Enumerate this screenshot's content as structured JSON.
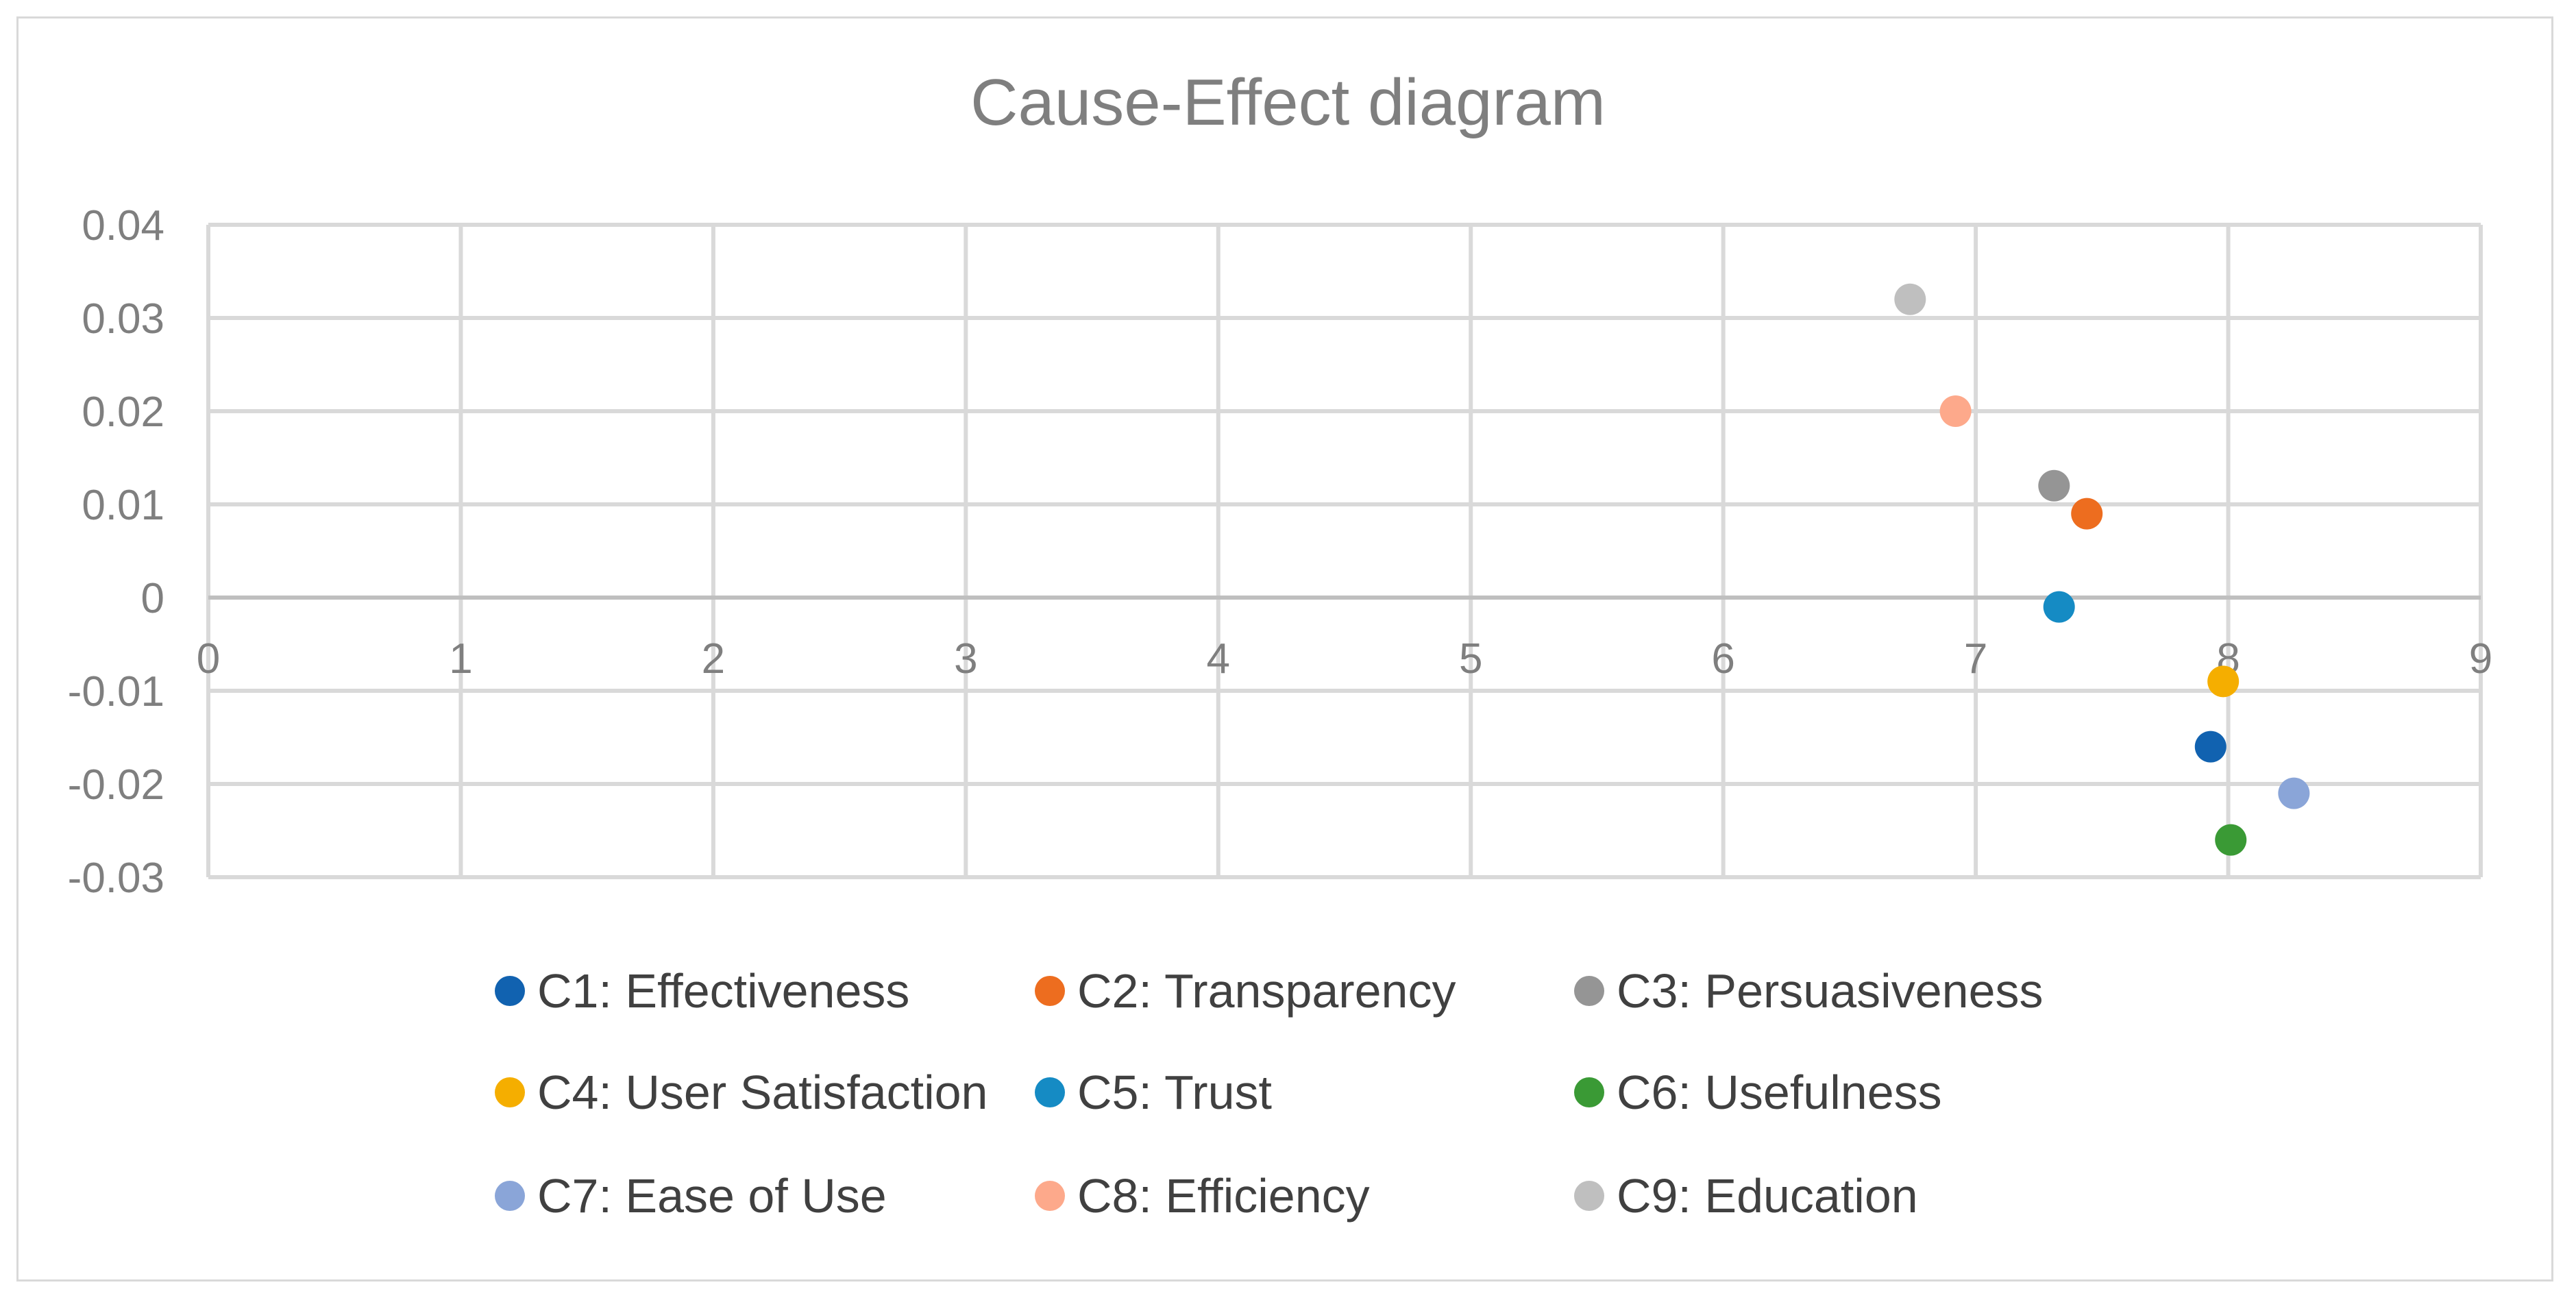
{
  "chart_data": {
    "type": "scatter",
    "title": "Cause-Effect diagram",
    "xlabel": "",
    "ylabel": "",
    "xlim": [
      0,
      9
    ],
    "ylim": [
      -0.03,
      0.04
    ],
    "x_ticks": [
      "0",
      "1",
      "2",
      "3",
      "4",
      "5",
      "6",
      "7",
      "8",
      "9"
    ],
    "y_ticks": [
      "0.04",
      "0.03",
      "0.02",
      "0.01",
      "0",
      "-0.01",
      "-0.02",
      "-0.03"
    ],
    "grid": true,
    "legend_position": "bottom",
    "series": [
      {
        "name": "C1: Effectiveness",
        "color": "#1162b0",
        "x": 7.93,
        "y": -0.016
      },
      {
        "name": "C2: Transparency",
        "color": "#ed6d1f",
        "x": 7.44,
        "y": 0.009
      },
      {
        "name": "C3: Persuasiveness",
        "color": "#959595",
        "x": 7.31,
        "y": 0.012
      },
      {
        "name": "C4: User Satisfaction",
        "color": "#f5ae00",
        "x": 7.98,
        "y": -0.009
      },
      {
        "name": "C5: Trust",
        "color": "#158bc4",
        "x": 7.33,
        "y": -0.001
      },
      {
        "name": "C6: Usefulness",
        "color": "#3a9a35",
        "x": 8.01,
        "y": -0.026
      },
      {
        "name": "C7: Ease of Use",
        "color": "#8aa5d8",
        "x": 8.26,
        "y": -0.021
      },
      {
        "name": "C8: Efficiency",
        "color": "#fda98b",
        "x": 6.92,
        "y": 0.02
      },
      {
        "name": "C9: Education",
        "color": "#bfbfbf",
        "x": 6.74,
        "y": 0.032
      }
    ]
  }
}
